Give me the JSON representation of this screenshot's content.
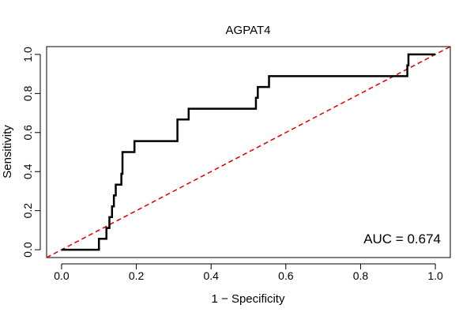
{
  "chart_data": {
    "type": "line",
    "title": "AGPAT4",
    "xlabel": "1 − Specificity",
    "ylabel": "Sensitivity",
    "xlim": [
      -0.04,
      1.04
    ],
    "ylim": [
      -0.04,
      1.04
    ],
    "xticks": [
      0.0,
      0.2,
      0.4,
      0.6,
      0.8,
      1.0
    ],
    "yticks": [
      0.0,
      0.2,
      0.4,
      0.6,
      0.8,
      1.0
    ],
    "xtick_labels": [
      "0.0",
      "0.2",
      "0.4",
      "0.6",
      "0.8",
      "1.0"
    ],
    "ytick_labels": [
      "0.0",
      "0.2",
      "0.4",
      "0.6",
      "0.8",
      "1.0"
    ],
    "grid": false,
    "series": [
      {
        "type": "step",
        "color": "#000000",
        "x": [
          0.0,
          0.1,
          0.1,
          0.12,
          0.12,
          0.128,
          0.128,
          0.135,
          0.135,
          0.14,
          0.14,
          0.145,
          0.145,
          0.148,
          0.148,
          0.16,
          0.16,
          0.163,
          0.163,
          0.168,
          0.168,
          0.195,
          0.195,
          0.31,
          0.31,
          0.34,
          0.34,
          0.52,
          0.52,
          0.525,
          0.525,
          0.535,
          0.535,
          0.555,
          0.555,
          0.925,
          0.925,
          0.928,
          0.928,
          1.0
        ],
        "y": [
          0.0,
          0.0,
          0.056,
          0.056,
          0.111,
          0.111,
          0.167,
          0.167,
          0.222,
          0.222,
          0.278,
          0.278,
          0.333,
          0.333,
          0.333,
          0.333,
          0.389,
          0.389,
          0.5,
          0.5,
          0.5,
          0.5,
          0.556,
          0.556,
          0.667,
          0.667,
          0.722,
          0.722,
          0.778,
          0.778,
          0.833,
          0.833,
          0.833,
          0.833,
          0.889,
          0.889,
          0.944,
          0.944,
          1.0,
          1.0
        ]
      },
      {
        "type": "reference-diagonal",
        "color": "#dd0000",
        "x": [
          -0.04,
          1.04
        ],
        "y": [
          -0.04,
          1.04
        ]
      }
    ],
    "annotation": "AUC = 0.674"
  }
}
